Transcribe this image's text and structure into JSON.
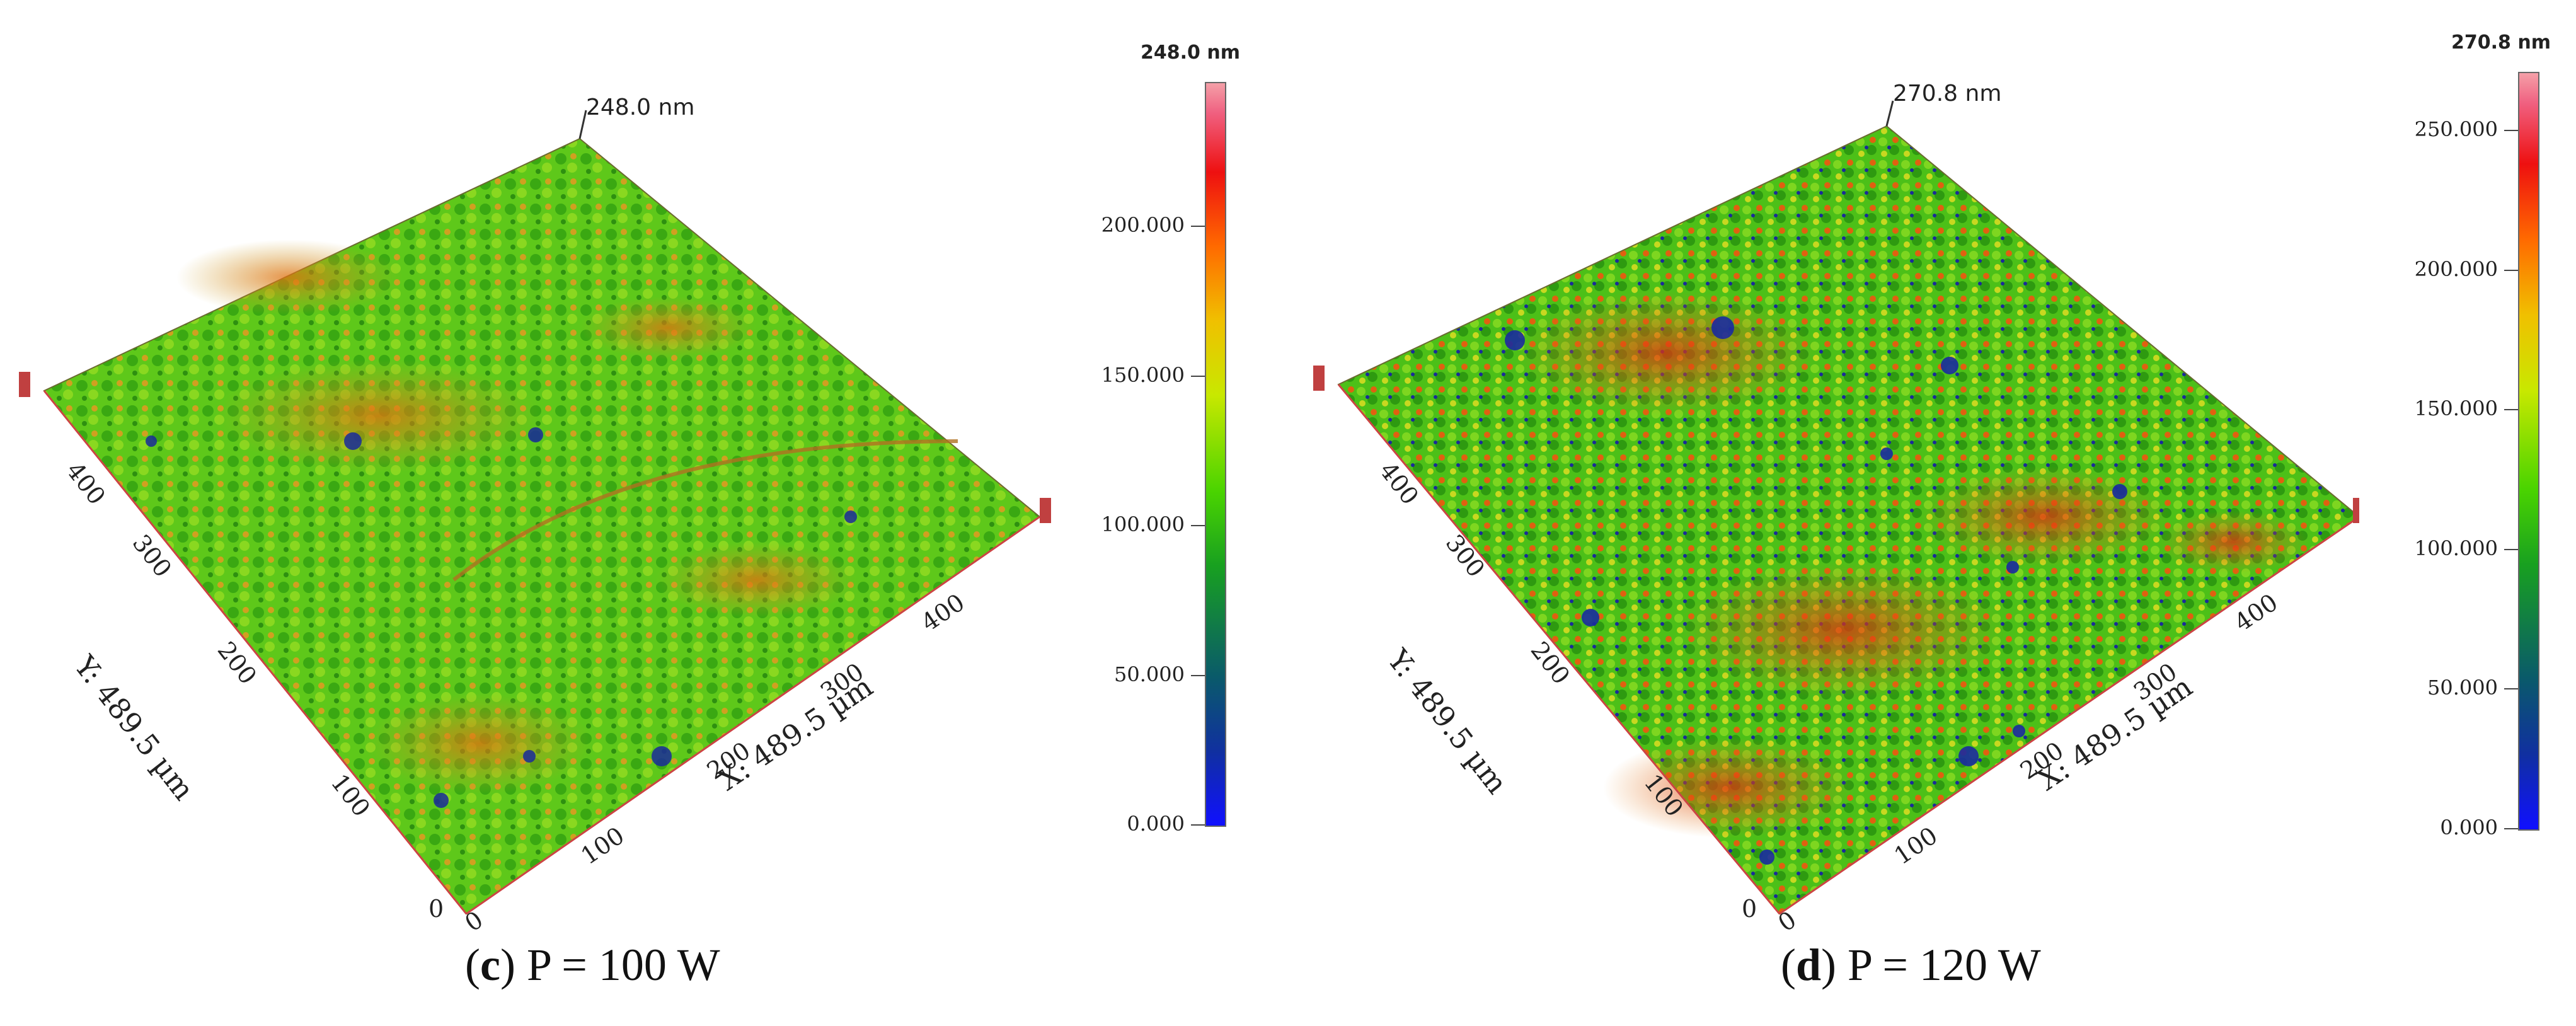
{
  "panels": [
    {
      "id": "c",
      "caption_letter": "c",
      "caption_text": "P = 100 W",
      "peak_label": "248.0 nm",
      "x_axis_title": "X: 489.5 µm",
      "y_axis_title": "Y: 489.5 µm",
      "x_ticks": [
        "0",
        "100",
        "200",
        "300",
        "400"
      ],
      "y_ticks": [
        "0",
        "100",
        "200",
        "300",
        "400"
      ],
      "colorbar": {
        "max_label": "248.0 nm",
        "ticks": [
          "0.000",
          "50.000",
          "100.000",
          "150.000",
          "200.000"
        ],
        "tick_values": [
          0,
          50,
          100,
          150,
          200
        ],
        "max": 248.0
      }
    },
    {
      "id": "d",
      "caption_letter": "d",
      "caption_text": "P = 120 W",
      "peak_label": "270.8 nm",
      "x_axis_title": "X: 489.5 µm",
      "y_axis_title": "Y: 489.5 µm",
      "x_ticks": [
        "0",
        "100",
        "200",
        "300",
        "400"
      ],
      "y_ticks": [
        "0",
        "100",
        "200",
        "300",
        "400"
      ],
      "colorbar": {
        "max_label": "270.8 nm",
        "ticks": [
          "0.000",
          "50.000",
          "100.000",
          "150.000",
          "200.000",
          "250.000"
        ],
        "tick_values": [
          0,
          50,
          100,
          150,
          200,
          250
        ],
        "max": 270.8
      }
    }
  ]
}
